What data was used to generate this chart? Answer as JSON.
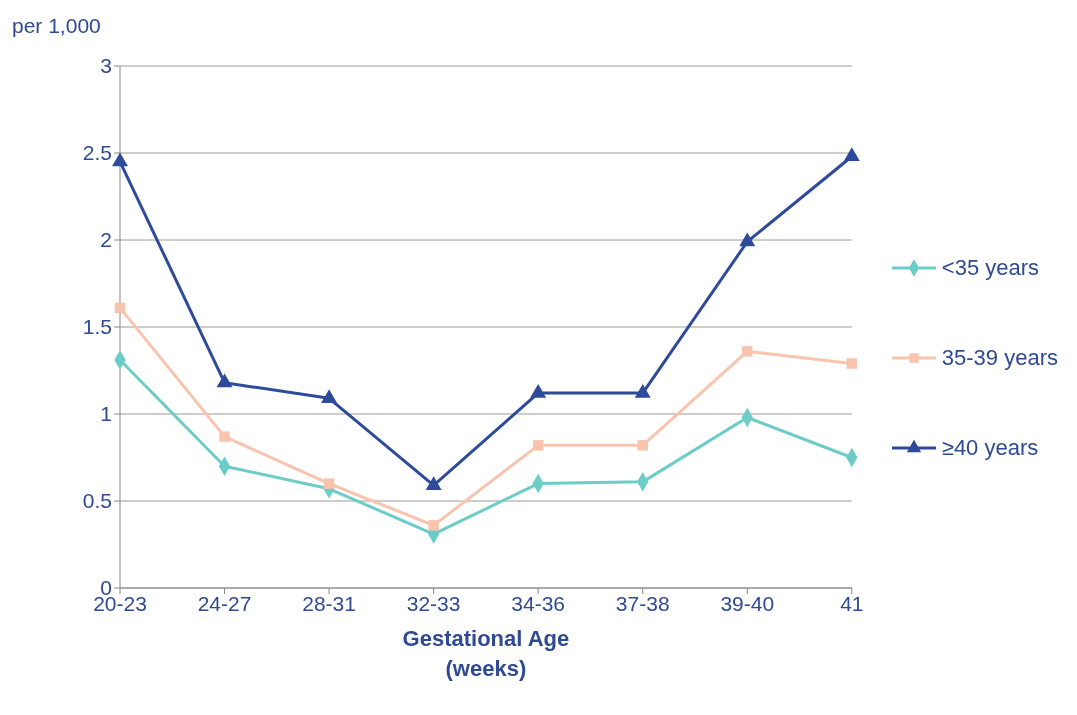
{
  "chart_data": {
    "type": "line",
    "ylabel": "per 1,000",
    "xlabel": "Gestational Age\n(weeks)",
    "categories": [
      "20-23",
      "24-27",
      "28-31",
      "32-33",
      "34-36",
      "37-38",
      "39-40",
      "41"
    ],
    "series": [
      {
        "name": "<35 years",
        "color": "#6ccdc8",
        "marker": "diamond",
        "values": [
          1.31,
          0.7,
          0.57,
          0.31,
          0.6,
          0.61,
          0.98,
          0.75
        ]
      },
      {
        "name": "35-39 years",
        "color": "#f9c4ad",
        "marker": "square",
        "values": [
          1.61,
          0.87,
          0.6,
          0.36,
          0.82,
          0.82,
          1.36,
          1.29
        ]
      },
      {
        "name": "≥40 years",
        "color": "#2e4a9a",
        "marker": "triangle",
        "values": [
          2.45,
          1.18,
          1.09,
          0.59,
          1.12,
          1.12,
          1.99,
          2.48
        ]
      }
    ],
    "ylim": [
      0,
      3
    ],
    "yticks": [
      0,
      0.5,
      1,
      1.5,
      2,
      2.5,
      3
    ],
    "grid": "y",
    "legend": "right",
    "line_style": "solid"
  }
}
